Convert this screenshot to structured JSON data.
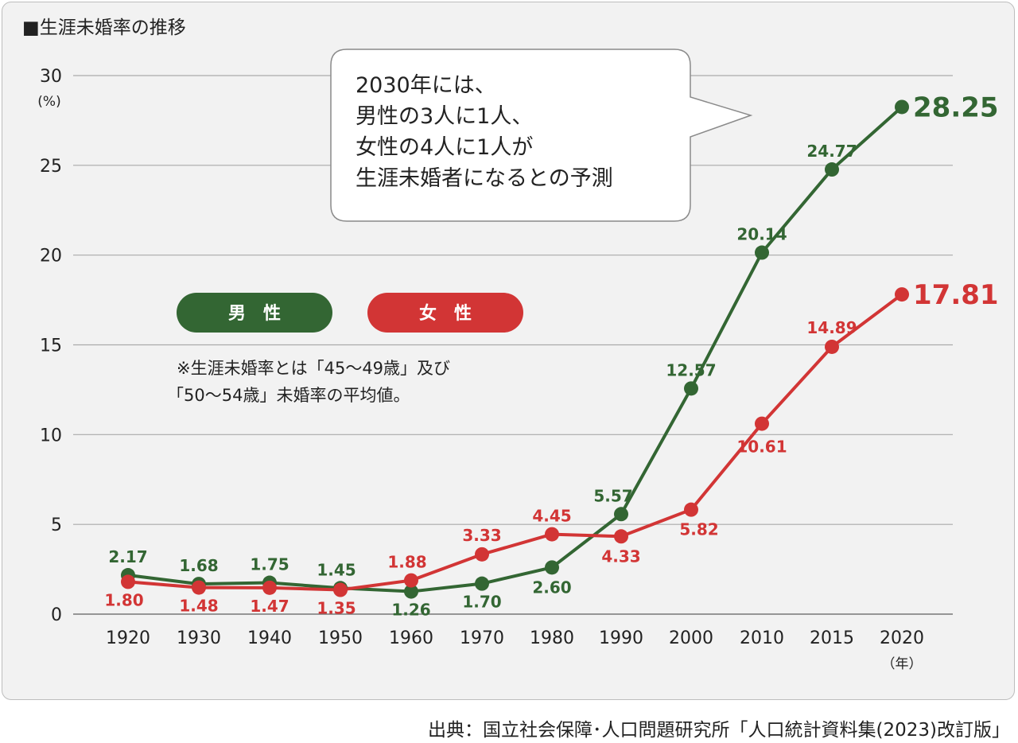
{
  "chart_data": {
    "type": "line",
    "title": "■生涯未婚率の推移",
    "ylabel": "(%)",
    "xunit": "（年）",
    "categories": [
      "1920",
      "1930",
      "1940",
      "1950",
      "1960",
      "1970",
      "1980",
      "1990",
      "2000",
      "2010",
      "2015",
      "2020"
    ],
    "ylim": [
      0,
      30
    ],
    "yticks": [
      0,
      5,
      10,
      15,
      20,
      25,
      30
    ],
    "grid": true,
    "series": [
      {
        "name": "男　性",
        "color": "#336633",
        "values": [
          2.17,
          1.68,
          1.75,
          1.45,
          1.26,
          1.7,
          2.6,
          5.57,
          12.57,
          20.14,
          24.77,
          28.25
        ],
        "labels": [
          "2.17",
          "1.68",
          "1.75",
          "1.45",
          "1.26",
          "1.70",
          "2.60",
          "5.57",
          "12.57",
          "20.14",
          "24.77",
          "28.25"
        ]
      },
      {
        "name": "女　性",
        "color": "#d23535",
        "values": [
          1.8,
          1.48,
          1.47,
          1.35,
          1.88,
          3.33,
          4.45,
          4.33,
          5.82,
          10.61,
          14.89,
          17.81
        ],
        "labels": [
          "1.80",
          "1.48",
          "1.47",
          "1.35",
          "1.88",
          "3.33",
          "4.45",
          "4.33",
          "5.82",
          "10.61",
          "14.89",
          "17.81"
        ]
      }
    ],
    "note": [
      "※生涯未婚率とは「45～49歳」及び",
      "「50～54歳」未婚率の平均値。"
    ],
    "callout": [
      "2030年には、",
      "男性の3人に1人、",
      "女性の4人に1人が",
      "生涯未婚者になるとの予測"
    ]
  },
  "source": "出典：国立社会保障･人口問題研究所「人口統計資料集(2023)改訂版」"
}
